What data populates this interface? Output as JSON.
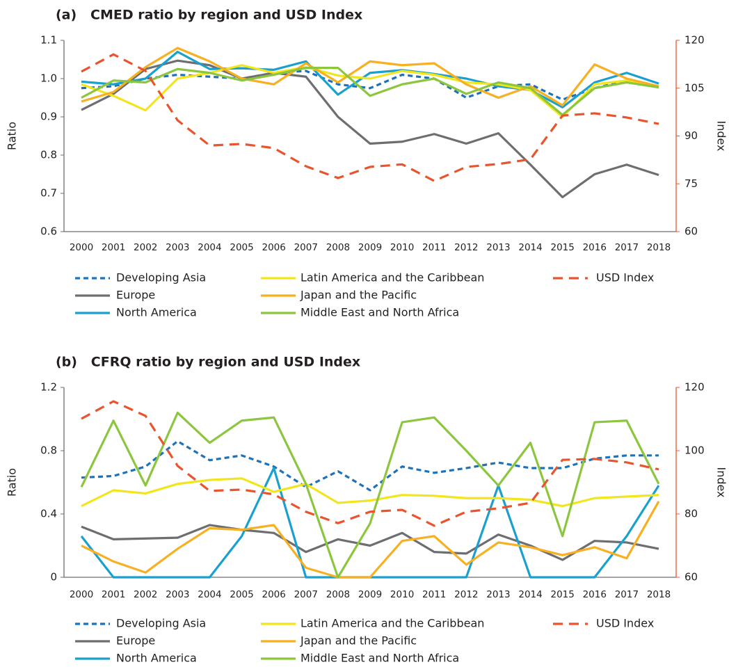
{
  "chart_data": [
    {
      "type": "line",
      "title": "(a)   CMED ratio by region and USD Index",
      "ylabel": "Ratio",
      "y2label": "Index",
      "categories": [
        "2000",
        "2001",
        "2002",
        "2003",
        "2004",
        "2005",
        "2006",
        "2007",
        "2008",
        "2009",
        "2010",
        "2011",
        "2012",
        "2013",
        "2014",
        "2015",
        "2016",
        "2017",
        "2018"
      ],
      "ylim": [
        0.6,
        1.1
      ],
      "yticks": [
        0.6,
        0.7,
        0.8,
        0.9,
        {
          "value": 1,
          "label": "1.0"
        },
        1.1
      ],
      "y2lim": [
        60,
        120
      ],
      "y2ticks": [
        60,
        75,
        90,
        105,
        120
      ],
      "y2color": "#e9542d",
      "series": [
        {
          "name": "Developing Asia",
          "color": "#1d72b8",
          "dash": true,
          "values": [
            0.975,
            0.98,
            1.0,
            1.01,
            1.005,
            1.0,
            1.015,
            1.02,
            0.985,
            0.975,
            1.01,
            1.0,
            0.95,
            0.98,
            0.985,
            0.945,
            0.975,
            0.995,
            0.98
          ]
        },
        {
          "name": "Europe",
          "color": "#6d6e71",
          "values": [
            0.918,
            0.96,
            1.025,
            1.047,
            1.035,
            1.0,
            1.015,
            1.005,
            0.9,
            0.83,
            0.835,
            0.855,
            0.83,
            0.857,
            0.775,
            0.69,
            0.75,
            0.775,
            0.748
          ]
        },
        {
          "name": "North America",
          "color": "#1aa0cf",
          "values": [
            0.992,
            0.985,
            1.0,
            1.07,
            1.025,
            1.027,
            1.023,
            1.045,
            0.958,
            1.015,
            1.022,
            1.012,
            1.0,
            0.98,
            0.97,
            0.925,
            0.99,
            1.015,
            0.987
          ]
        },
        {
          "name": "Latin America and the Caribbean",
          "color": "#f2e51b",
          "values": [
            0.985,
            0.955,
            0.917,
            1.0,
            1.015,
            1.035,
            1.015,
            1.03,
            1.008,
            1.0,
            1.02,
            1.01,
            0.99,
            0.985,
            0.97,
            0.9,
            0.985,
            0.995,
            0.98
          ]
        },
        {
          "name": "Japan and the Pacific",
          "color": "#f6b021",
          "values": [
            0.94,
            0.965,
            1.03,
            1.08,
            1.045,
            1.0,
            0.985,
            1.04,
            0.99,
            1.045,
            1.035,
            1.04,
            0.985,
            0.95,
            0.98,
            0.93,
            1.037,
            1.0,
            0.98
          ]
        },
        {
          "name": "Middle East and North Africa",
          "color": "#8cc63f",
          "values": [
            0.95,
            0.995,
            0.99,
            1.025,
            1.015,
            0.995,
            1.01,
            1.028,
            1.028,
            0.955,
            0.985,
            1.0,
            0.96,
            0.99,
            0.975,
            0.905,
            0.975,
            0.99,
            0.977
          ]
        },
        {
          "name": "USD Index",
          "color": "#e9542d",
          "dash": true,
          "axis": "y2",
          "values": [
            110.2,
            115.6,
            110.4,
            94.9,
            87,
            87.5,
            86.2,
            80.5,
            76.8,
            80.3,
            81.1,
            75.9,
            80.3,
            81.2,
            82.7,
            96.4,
            97.1,
            95.8,
            93.8
          ]
        }
      ]
    },
    {
      "type": "line",
      "title": "(b)   CFRQ ratio by region and USD Index",
      "ylabel": "Ratio",
      "y2label": "Index",
      "categories": [
        "2000",
        "2001",
        "2002",
        "2003",
        "2004",
        "2005",
        "2006",
        "2007",
        "2008",
        "2009",
        "2010",
        "2011",
        "2012",
        "2013",
        "2014",
        "2015",
        "2016",
        "2017",
        "2018"
      ],
      "ylim": [
        0,
        1.2
      ],
      "yticks": [
        0,
        0.4,
        0.8,
        1.2
      ],
      "y2lim": [
        60,
        120
      ],
      "y2ticks": [
        60,
        80,
        100,
        120
      ],
      "y2color": "#e9542d",
      "series": [
        {
          "name": "Developing Asia",
          "color": "#1d72b8",
          "dash": true,
          "values": [
            0.63,
            0.64,
            0.7,
            0.86,
            0.74,
            0.77,
            0.7,
            0.57,
            0.67,
            0.55,
            0.7,
            0.66,
            0.69,
            0.725,
            0.69,
            0.69,
            0.75,
            0.77,
            0.77
          ]
        },
        {
          "name": "Europe",
          "color": "#6d6e71",
          "values": [
            0.32,
            0.24,
            0.245,
            0.25,
            0.33,
            0.3,
            0.28,
            0.16,
            0.24,
            0.2,
            0.28,
            0.16,
            0.15,
            0.27,
            0.2,
            0.11,
            0.23,
            0.22,
            0.18
          ]
        },
        {
          "name": "North America",
          "color": "#1aa0cf",
          "values": [
            0.26,
            0,
            0,
            0,
            0,
            0.26,
            0.69,
            0,
            0,
            0,
            0,
            0,
            0,
            0.58,
            0,
            0,
            0,
            0.26,
            0.58
          ]
        },
        {
          "name": "Latin America and the Caribbean",
          "color": "#f2e51b",
          "values": [
            0.45,
            0.55,
            0.53,
            0.59,
            0.615,
            0.625,
            0.54,
            0.59,
            0.47,
            0.485,
            0.52,
            0.515,
            0.5,
            0.5,
            0.49,
            0.45,
            0.5,
            0.51,
            0.52
          ]
        },
        {
          "name": "Japan and the Pacific",
          "color": "#f6b021",
          "values": [
            0.2,
            0.1,
            0.03,
            0.18,
            0.31,
            0.3,
            0.33,
            0.06,
            0,
            0,
            0.23,
            0.26,
            0.08,
            0.22,
            0.19,
            0.14,
            0.19,
            0.12,
            0.48
          ]
        },
        {
          "name": "Middle East and North Africa",
          "color": "#8cc63f",
          "values": [
            0.57,
            0.99,
            0.58,
            1.04,
            0.85,
            0.99,
            1.01,
            0.59,
            0,
            0.34,
            0.98,
            1.01,
            0.8,
            0.58,
            0.85,
            0.26,
            0.98,
            0.99,
            0.59
          ]
        },
        {
          "name": "USD Index",
          "color": "#e9542d",
          "dash": true,
          "axis": "y2",
          "values": [
            110.1,
            115.6,
            111,
            95.2,
            87.3,
            87.7,
            86.2,
            80.7,
            77.1,
            80.7,
            81.3,
            76.3,
            80.7,
            81.8,
            83.5,
            97.1,
            97.4,
            96.3,
            94.1
          ]
        }
      ]
    }
  ]
}
